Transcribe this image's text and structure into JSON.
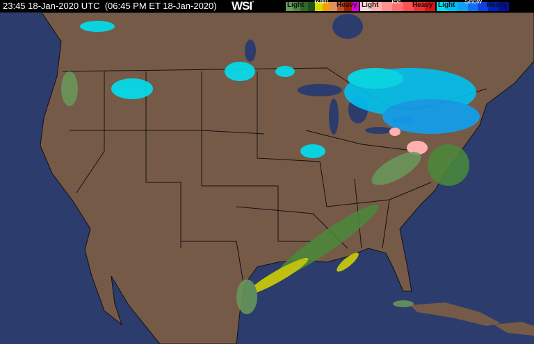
{
  "header": {
    "timestamp": "23:45 18-Jan-2020 UTC  (06:45 PM ET 18-Jan-2020)",
    "logo": "WSI",
    "logo_mark": "°"
  },
  "legend": {
    "rain": {
      "title": "Rain",
      "light": "Light",
      "heavy": "Heavy",
      "colors": [
        "#6a9a5a",
        "#4a8a3a",
        "#2f6a25",
        "#1f4f1a",
        "#d8d800",
        "#f0a000",
        "#e09060",
        "#c05020",
        "#a02000",
        "#e000e0"
      ]
    },
    "ice": {
      "title": "Ice",
      "light": "Light",
      "heavy": "Heavy",
      "colors": [
        "#ffd8d8",
        "#ffb0b0",
        "#ff9090",
        "#ff7070",
        "#ff5050",
        "#f03030",
        "#e01010"
      ]
    },
    "snow": {
      "title": "Snow",
      "light": "Light",
      "heavy": "Heavy",
      "colors": [
        "#00e0f0",
        "#00c0f0",
        "#10a0f0",
        "#1070f0",
        "#1040e0",
        "#0020c0",
        "#0010a0"
      ]
    }
  },
  "colors": {
    "land": "#765a48",
    "water": "#2c3c6c",
    "borders": "#111111"
  }
}
